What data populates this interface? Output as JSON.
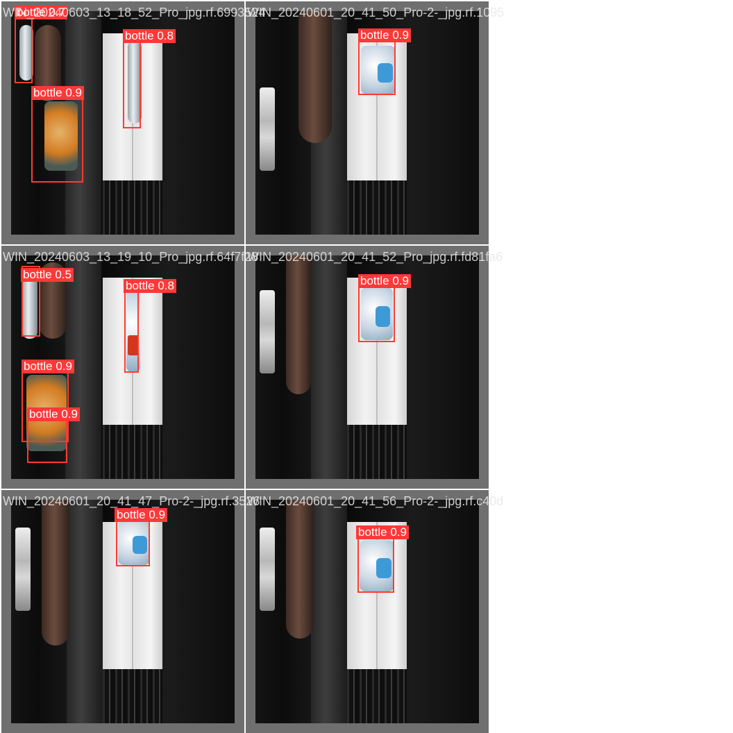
{
  "colors": {
    "box": "#ff3b30",
    "label_bg": "#ff3838",
    "label_text": "#ffffff",
    "tile_bg": "#6f6f6f",
    "title_text": "#e8e8e8"
  },
  "tiles": [
    {
      "title": "WIN_20240603_13_18_52_Pro_jpg.rf.6993524",
      "detections": [
        {
          "class": "bottle",
          "conf": "0.7"
        },
        {
          "class": "bottle",
          "conf": "0.8"
        },
        {
          "class": "bottle",
          "conf": "0.9"
        }
      ]
    },
    {
      "title": "WIN_20240601_20_41_50_Pro-2-_jpg.rf.1095",
      "detections": [
        {
          "class": "bottle",
          "conf": "0.9"
        }
      ]
    },
    {
      "title": "WIN_20240603_13_19_10_Pro_jpg.rf.64f7f28",
      "detections": [
        {
          "class": "bottle",
          "conf": "0.5"
        },
        {
          "class": "bottle",
          "conf": "0.8"
        },
        {
          "class": "bottle",
          "conf": "0.9"
        },
        {
          "class": "bottle",
          "conf": "0.9"
        }
      ]
    },
    {
      "title": "WIN_20240601_20_41_52_Pro_jpg.rf.fd81fa6",
      "detections": [
        {
          "class": "bottle",
          "conf": "0.9"
        }
      ]
    },
    {
      "title": "WIN_20240601_20_41_47_Pro-2-_jpg.rf.3526",
      "detections": [
        {
          "class": "bottle",
          "conf": "0.9"
        }
      ]
    },
    {
      "title": "WIN_20240601_20_41_56_Pro-2-_jpg.rf.c40d",
      "detections": [
        {
          "class": "bottle",
          "conf": "0.9"
        }
      ]
    }
  ]
}
